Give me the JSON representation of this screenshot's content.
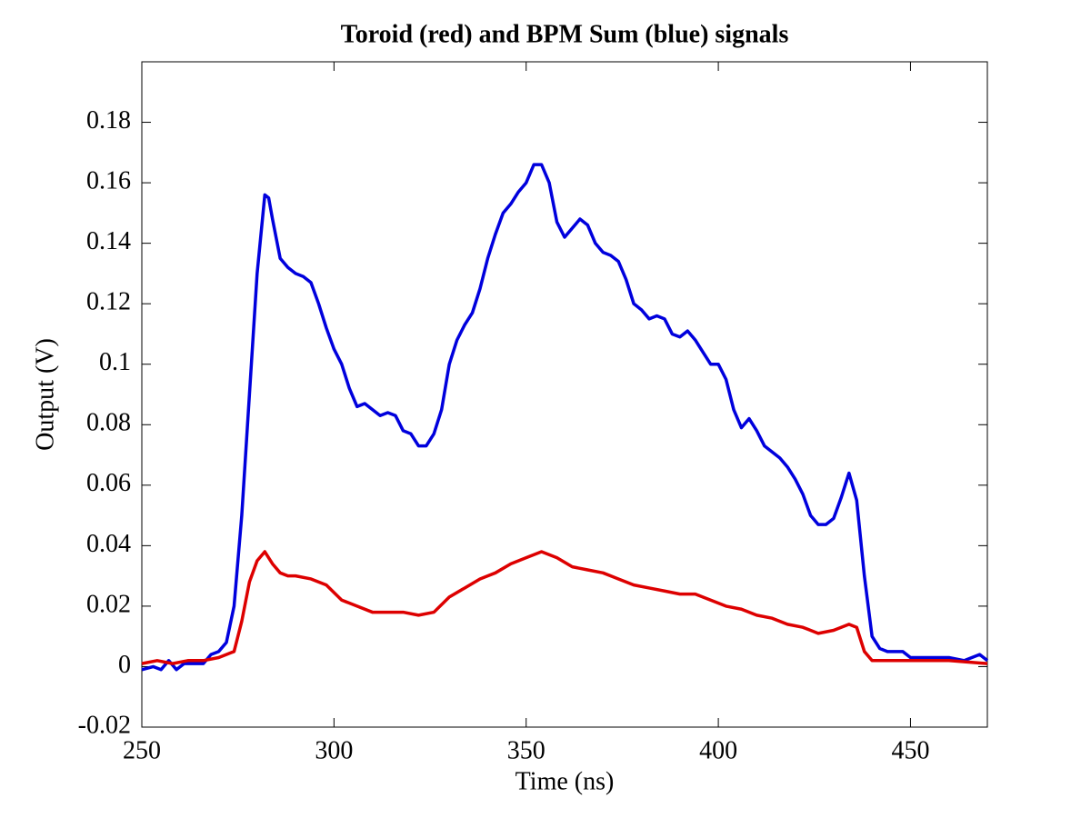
{
  "chart_data": {
    "type": "line",
    "title": "Toroid (red) and BPM Sum (blue) signals",
    "xlabel": "Time (ns)",
    "ylabel": "Output (V)",
    "xlim": [
      250,
      470
    ],
    "xticks": [
      250,
      300,
      350,
      400,
      450
    ],
    "ylim": [
      -0.02,
      0.2
    ],
    "yticks": [
      -0.02,
      0,
      0.02,
      0.04,
      0.06,
      0.08,
      0.1,
      0.12,
      0.14,
      0.16,
      0.18
    ],
    "grid": false,
    "series": [
      {
        "name": "BPM Sum",
        "color": "#0000dd",
        "x": [
          250,
          253,
          255,
          257,
          259,
          261,
          266,
          268,
          270,
          272,
          274,
          276,
          278,
          280,
          282,
          283,
          284,
          286,
          288,
          290,
          292,
          294,
          296,
          298,
          300,
          302,
          304,
          306,
          308,
          310,
          312,
          314,
          316,
          318,
          320,
          322,
          324,
          326,
          328,
          330,
          332,
          334,
          336,
          338,
          340,
          342,
          344,
          346,
          348,
          350,
          352,
          354,
          356,
          358,
          360,
          362,
          364,
          366,
          368,
          370,
          372,
          374,
          376,
          378,
          380,
          382,
          384,
          386,
          388,
          390,
          392,
          394,
          396,
          398,
          400,
          402,
          404,
          406,
          408,
          410,
          412,
          414,
          416,
          418,
          420,
          422,
          424,
          426,
          428,
          430,
          432,
          434,
          436,
          438,
          440,
          442,
          444,
          448,
          450,
          455,
          460,
          464,
          468,
          470
        ],
        "values": [
          -0.001,
          0,
          -0.001,
          0.002,
          -0.001,
          0.001,
          0.001,
          0.004,
          0.005,
          0.008,
          0.02,
          0.05,
          0.09,
          0.13,
          0.156,
          0.155,
          0.148,
          0.135,
          0.132,
          0.13,
          0.129,
          0.127,
          0.12,
          0.112,
          0.105,
          0.1,
          0.092,
          0.086,
          0.087,
          0.085,
          0.083,
          0.084,
          0.083,
          0.078,
          0.077,
          0.073,
          0.073,
          0.077,
          0.085,
          0.1,
          0.108,
          0.113,
          0.117,
          0.125,
          0.135,
          0.143,
          0.15,
          0.153,
          0.157,
          0.16,
          0.166,
          0.166,
          0.16,
          0.147,
          0.142,
          0.145,
          0.148,
          0.146,
          0.14,
          0.137,
          0.136,
          0.134,
          0.128,
          0.12,
          0.118,
          0.115,
          0.116,
          0.115,
          0.11,
          0.109,
          0.111,
          0.108,
          0.104,
          0.1,
          0.1,
          0.095,
          0.085,
          0.079,
          0.082,
          0.078,
          0.073,
          0.071,
          0.069,
          0.066,
          0.062,
          0.057,
          0.05,
          0.047,
          0.047,
          0.049,
          0.056,
          0.064,
          0.055,
          0.03,
          0.01,
          0.006,
          0.005,
          0.005,
          0.003,
          0.003,
          0.003,
          0.002,
          0.004,
          0.002
        ]
      },
      {
        "name": "Toroid",
        "color": "#dd0000",
        "x": [
          250,
          254,
          258,
          262,
          266,
          270,
          274,
          276,
          278,
          280,
          282,
          284,
          286,
          288,
          290,
          294,
          298,
          302,
          306,
          310,
          314,
          318,
          322,
          326,
          330,
          334,
          338,
          342,
          346,
          350,
          354,
          358,
          362,
          366,
          370,
          374,
          378,
          382,
          386,
          390,
          394,
          398,
          402,
          406,
          410,
          414,
          418,
          422,
          426,
          430,
          434,
          436,
          438,
          440,
          444,
          450,
          460,
          470
        ],
        "values": [
          0.001,
          0.002,
          0.001,
          0.002,
          0.002,
          0.003,
          0.005,
          0.015,
          0.028,
          0.035,
          0.038,
          0.034,
          0.031,
          0.03,
          0.03,
          0.029,
          0.027,
          0.022,
          0.02,
          0.018,
          0.018,
          0.018,
          0.017,
          0.018,
          0.023,
          0.026,
          0.029,
          0.031,
          0.034,
          0.036,
          0.038,
          0.036,
          0.033,
          0.032,
          0.031,
          0.029,
          0.027,
          0.026,
          0.025,
          0.024,
          0.024,
          0.022,
          0.02,
          0.019,
          0.017,
          0.016,
          0.014,
          0.013,
          0.011,
          0.012,
          0.014,
          0.013,
          0.005,
          0.002,
          0.002,
          0.002,
          0.002,
          0.001
        ]
      }
    ]
  }
}
